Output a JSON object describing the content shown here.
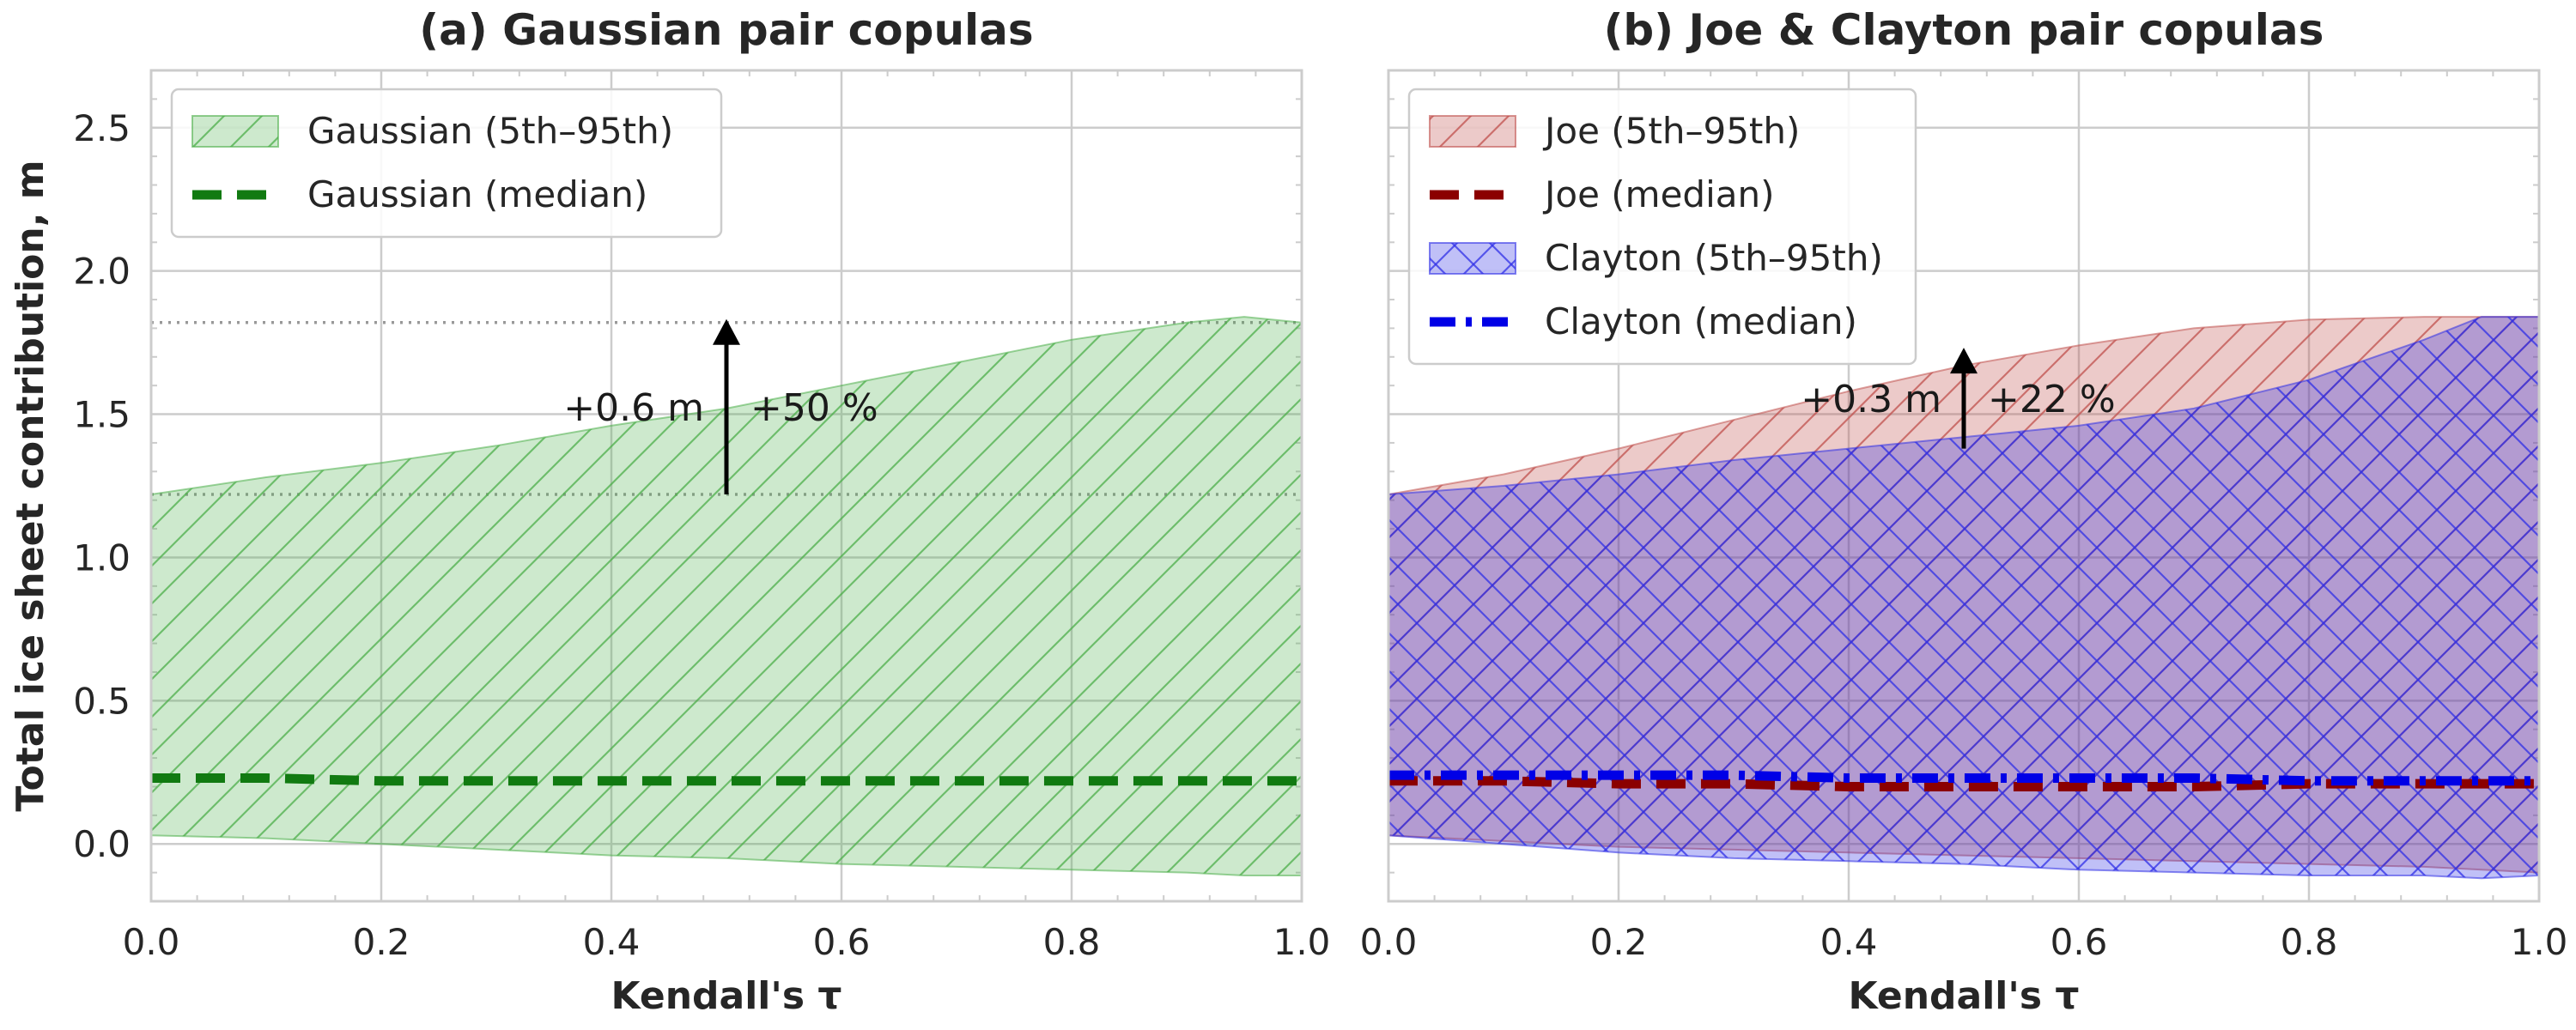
{
  "chart_data": [
    {
      "type": "area",
      "title": "(a) Gaussian pair copulas",
      "xlabel": "Kendall's τ",
      "ylabel": "Total ice sheet contribution, m",
      "xlim": [
        0.0,
        1.0
      ],
      "ylim": [
        -0.2,
        2.7
      ],
      "xticks": [
        "0.0",
        "0.2",
        "0.4",
        "0.6",
        "0.8",
        "1.0"
      ],
      "yticks": [
        "0.0",
        "0.5",
        "1.0",
        "1.5",
        "2.0",
        "2.5"
      ],
      "grid": true,
      "legend_position": "top-left",
      "x": [
        0.0,
        0.1,
        0.2,
        0.3,
        0.4,
        0.5,
        0.6,
        0.7,
        0.8,
        0.9,
        0.95,
        1.0
      ],
      "series": [
        {
          "name": "Gaussian (5th–95th)",
          "kind": "band",
          "color": "#4daf4a",
          "fill_opacity": 0.28,
          "hatch": "forward",
          "lower": [
            0.03,
            0.02,
            0.0,
            -0.02,
            -0.04,
            -0.05,
            -0.07,
            -0.08,
            -0.09,
            -0.1,
            -0.11,
            -0.11
          ],
          "upper": [
            1.22,
            1.28,
            1.33,
            1.39,
            1.46,
            1.52,
            1.6,
            1.68,
            1.76,
            1.82,
            1.84,
            1.82
          ]
        },
        {
          "name": "Gaussian (median)",
          "kind": "line",
          "color": "#117a11",
          "dash": "dashed",
          "values": [
            0.23,
            0.23,
            0.22,
            0.22,
            0.22,
            0.22,
            0.22,
            0.22,
            0.22,
            0.22,
            0.22,
            0.22
          ]
        }
      ],
      "reference_lines": [
        1.22,
        1.82
      ],
      "annotation": {
        "x": 0.5,
        "from": 1.22,
        "to": 1.82,
        "left_text": "+0.6 m",
        "right_text": "+50 %"
      }
    },
    {
      "type": "area",
      "title": "(b) Joe & Clayton pair copulas",
      "xlabel": "Kendall's τ",
      "xlim": [
        0.0,
        1.0
      ],
      "ylim": [
        -0.2,
        2.7
      ],
      "xticks": [
        "0.0",
        "0.2",
        "0.4",
        "0.6",
        "0.8",
        "1.0"
      ],
      "grid": true,
      "legend_position": "top-left",
      "x": [
        0.0,
        0.1,
        0.2,
        0.3,
        0.4,
        0.5,
        0.6,
        0.7,
        0.8,
        0.9,
        0.95,
        1.0
      ],
      "series": [
        {
          "name": "Joe (5th–95th)",
          "kind": "band",
          "color": "#c0504d",
          "fill_opacity": 0.3,
          "hatch": "forward",
          "lower": [
            0.03,
            0.01,
            -0.01,
            -0.02,
            -0.03,
            -0.04,
            -0.05,
            -0.06,
            -0.07,
            -0.08,
            -0.09,
            -0.1
          ],
          "upper": [
            1.22,
            1.29,
            1.38,
            1.48,
            1.58,
            1.67,
            1.74,
            1.8,
            1.83,
            1.84,
            1.84,
            1.84
          ]
        },
        {
          "name": "Joe (median)",
          "kind": "line",
          "color": "#8b0000",
          "dash": "dashed",
          "values": [
            0.22,
            0.22,
            0.21,
            0.21,
            0.2,
            0.2,
            0.2,
            0.2,
            0.21,
            0.21,
            0.21,
            0.21
          ]
        },
        {
          "name": "Clayton (5th–95th)",
          "kind": "band",
          "color": "#3030e6",
          "fill_opacity": 0.3,
          "hatch": "cross",
          "lower": [
            0.03,
            0.0,
            -0.03,
            -0.05,
            -0.06,
            -0.07,
            -0.09,
            -0.1,
            -0.11,
            -0.11,
            -0.12,
            -0.11
          ],
          "upper": [
            1.22,
            1.25,
            1.29,
            1.34,
            1.38,
            1.42,
            1.46,
            1.52,
            1.62,
            1.76,
            1.84,
            1.84
          ]
        },
        {
          "name": "Clayton (median)",
          "kind": "line",
          "color": "#0000e6",
          "dash": "dashdot",
          "values": [
            0.24,
            0.24,
            0.24,
            0.24,
            0.23,
            0.23,
            0.23,
            0.23,
            0.22,
            0.22,
            0.22,
            0.22
          ]
        }
      ],
      "annotation": {
        "x": 0.5,
        "from": 1.38,
        "to": 1.72,
        "left_text": "+0.3 m",
        "right_text": "+22 %"
      }
    }
  ]
}
